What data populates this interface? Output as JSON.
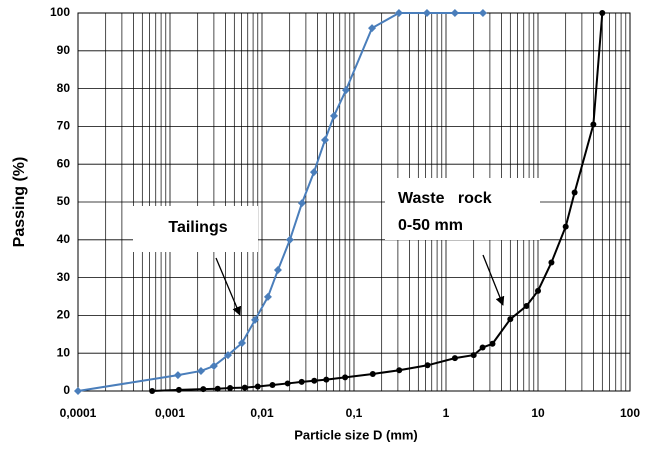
{
  "chart_data": {
    "type": "line",
    "xlabel": "Particle size D (mm)",
    "ylabel": "Passing (%)",
    "xscale": "log",
    "grid": true,
    "minor_grid": true,
    "xlim": [
      0.0001,
      100
    ],
    "ylim": [
      0,
      100
    ],
    "xticks": [
      {
        "value": 0.0001,
        "label": "0,0001"
      },
      {
        "value": 0.001,
        "label": "0,001"
      },
      {
        "value": 0.01,
        "label": "0,01"
      },
      {
        "value": 0.1,
        "label": "0,1"
      },
      1,
      10,
      100
    ],
    "yticks": [
      0,
      10,
      20,
      30,
      40,
      50,
      60,
      70,
      80,
      90,
      100
    ],
    "series": [
      {
        "color": "#4a7ebb",
        "marker": "diamond",
        "x": [
          0.0001,
          0.00122,
          0.00217,
          0.003,
          0.00427,
          0.00606,
          0.0084,
          0.0116,
          0.0149,
          0.0201,
          0.0272,
          0.0367,
          0.0484,
          0.0606,
          0.0818,
          0.157,
          0.308,
          0.621,
          1.25,
          2.52
        ],
        "values": [
          0,
          4.2,
          5.3,
          6.6,
          9.5,
          12.7,
          18.8,
          24.9,
          32,
          40,
          49.7,
          57.9,
          66.4,
          72.8,
          79.6,
          96,
          100,
          100,
          100,
          100
        ]
      },
      {
        "color": "#000000",
        "marker": "circle",
        "x": [
          0.00064,
          0.00125,
          0.0023,
          0.0033,
          0.0045,
          0.0065,
          0.009,
          0.013,
          0.019,
          0.027,
          0.037,
          0.05,
          0.08,
          0.16,
          0.31,
          0.63,
          1.25,
          2,
          2.5,
          3.2,
          5,
          7.5,
          10,
          14,
          20,
          25,
          40,
          50
        ],
        "values": [
          0,
          0.3,
          0.5,
          0.6,
          0.8,
          0.9,
          1.2,
          1.6,
          2,
          2.4,
          2.7,
          3,
          3.6,
          4.5,
          5.5,
          6.8,
          8.7,
          9.5,
          11.5,
          12.5,
          19,
          22.5,
          26.5,
          34,
          43.5,
          52.5,
          70.5,
          100
        ]
      }
    ],
    "annotations": [
      "Tailings",
      "Waste   rock",
      "0-50 mm"
    ]
  }
}
